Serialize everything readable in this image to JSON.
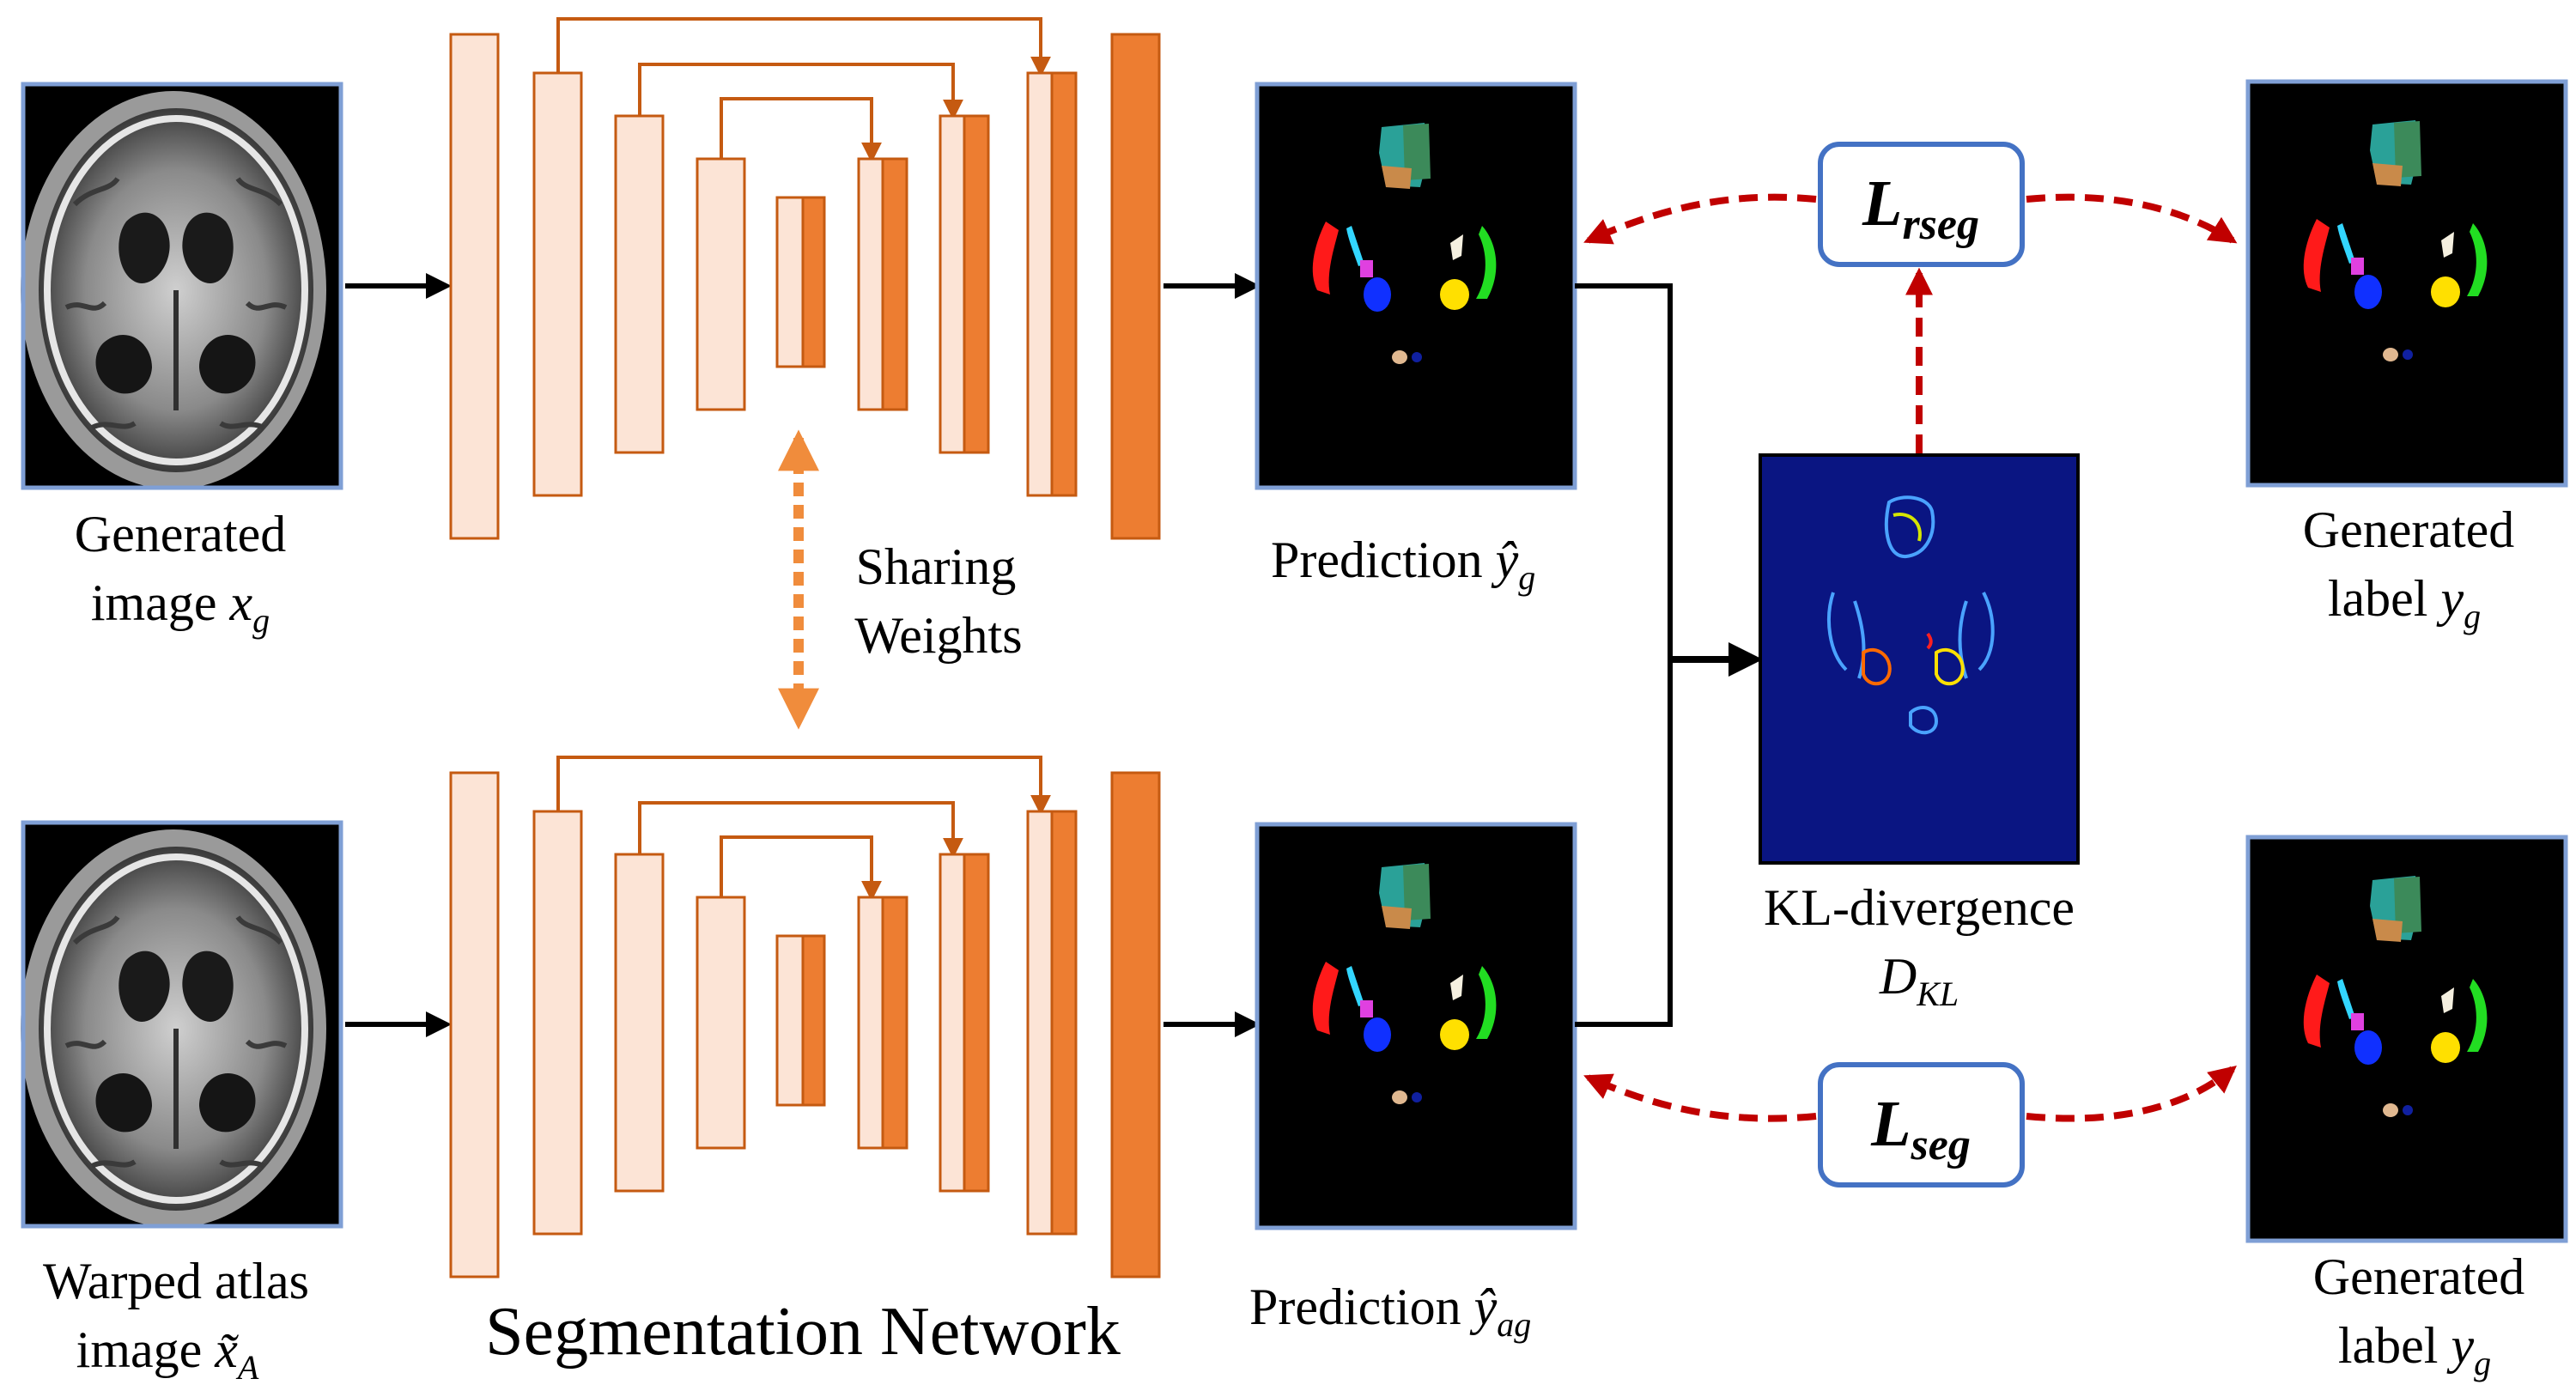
{
  "inputs": {
    "generated": {
      "line1": "Generated",
      "line2": "image ",
      "sym": "x",
      "sub": "g"
    },
    "warped": {
      "line1": "Warped atlas",
      "line2": "image ",
      "sym": "x̃",
      "sub": "A"
    }
  },
  "network": {
    "title": "Segmentation Network",
    "sharing_line1": "Sharing",
    "sharing_line2": "Weights"
  },
  "predictions": {
    "top": {
      "label": "Prediction ",
      "sym": "ŷ",
      "sub": "g"
    },
    "bottom": {
      "label": "Prediction ",
      "sym": "ŷ",
      "sub": "ag"
    }
  },
  "kl": {
    "line1": "KL-divergence",
    "sym": "D",
    "sub": "KL"
  },
  "losses": {
    "rseg": {
      "sym": "L",
      "sub": "rseg"
    },
    "seg": {
      "sym": "L",
      "sub": "seg"
    }
  },
  "labels": {
    "top": {
      "line1": "Generated",
      "line2": "label ",
      "sym": "y",
      "sub": "g"
    },
    "bottom": {
      "line1": "Generated",
      "line2": "label ",
      "sym": "y",
      "sub": "g"
    }
  },
  "colors": {
    "encoder": "#fce4d6",
    "decoder": "#ed7d31",
    "border": "#c55a11",
    "frame": "#7f9fd5",
    "loss_border": "#4472c4",
    "loss_arrow": "#c00000",
    "kl_bg": "#0a1582"
  }
}
